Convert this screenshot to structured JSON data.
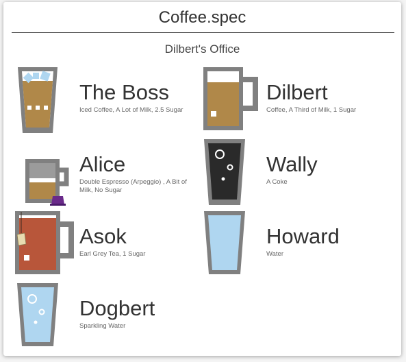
{
  "header": {
    "title": "Coffee.spec"
  },
  "office": {
    "name": "Dilbert's Office"
  },
  "people": [
    {
      "name": "The Boss",
      "order": "Iced Coffee, A Lot of Milk, 2.5 Sugar",
      "drink": "iced-coffee-glass-icon"
    },
    {
      "name": "Dilbert",
      "order": "Coffee, A Third of Milk, 1 Sugar",
      "drink": "coffee-mug-icon"
    },
    {
      "name": "Alice",
      "order": "Double Espresso (Arpeggio) , A Bit of Milk, No Sugar",
      "drink": "espresso-cup-icon"
    },
    {
      "name": "Wally",
      "order": "A Coke",
      "drink": "coke-glass-icon"
    },
    {
      "name": "Asok",
      "order": "Earl Grey Tea, 1 Sugar",
      "drink": "tea-mug-icon"
    },
    {
      "name": "Howard",
      "order": "Water",
      "drink": "water-glass-icon"
    },
    {
      "name": "Dogbert",
      "order": "Sparkling Water",
      "drink": "sparkling-water-glass-icon"
    }
  ],
  "colors": {
    "vessel": "#808080",
    "coffee": "#b08849",
    "milk": "#ffffff",
    "tea": "#b8563a",
    "coke": "#2a2a2a",
    "water": "#afd6f0",
    "capsule": "#6a2a8a"
  }
}
